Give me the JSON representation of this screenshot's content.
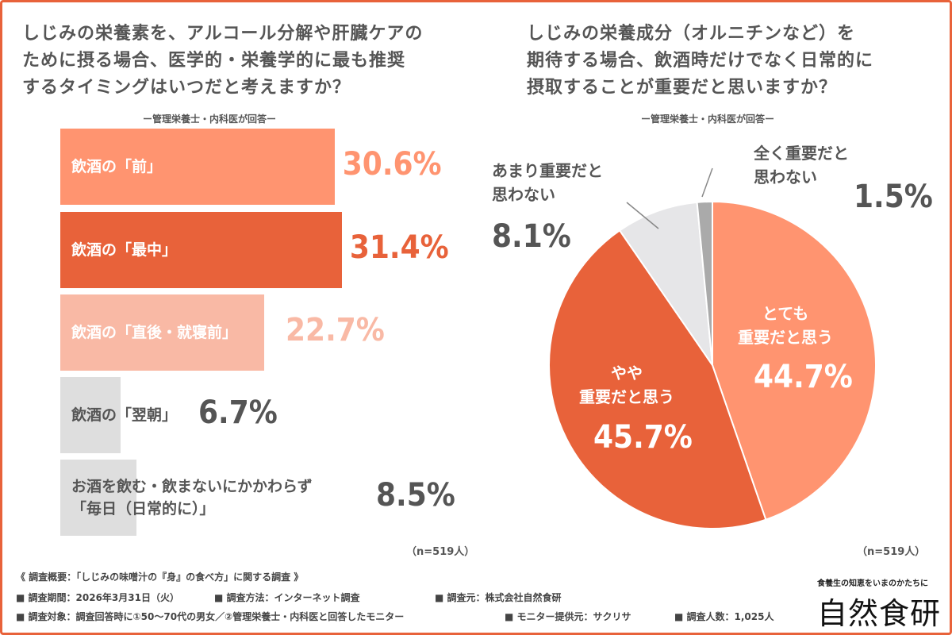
{
  "left": {
    "question": [
      "しじみの栄養素を、アルコール分解や肝臓ケアの",
      "ために摂る場合、医学的・栄養学的に最も推奨",
      "するタイミングはいつだと考えますか？"
    ],
    "subtitle": "ー管理栄養士・内科医が回答ー",
    "n": "（n=519人）"
  },
  "right": {
    "question": [
      "しじみの栄養成分（オルニチンなど）を",
      "期待する場合、飲酒時だけでなく日常的に",
      "摂取することが重要だと思いますか？"
    ],
    "subtitle": "ー管理栄養士・内科医が回答ー",
    "n": "（n=519人）"
  },
  "chart_data": [
    {
      "type": "bar",
      "orientation": "horizontal",
      "categories": [
        "飲酒の「前」",
        "飲酒の「最中」",
        "飲酒の「直後・就寝前」",
        "飲酒の「翌朝」",
        "お酒を飲む・飲まないにかかわらず「毎日（日常的に）」"
      ],
      "category_lines": [
        [
          "飲酒の「前」"
        ],
        [
          "飲酒の「最中」"
        ],
        [
          "飲酒の「直後・就寝前」"
        ],
        [
          "飲酒の「翌朝」"
        ],
        [
          "お酒を飲む・飲まないにかかわらず",
          "「毎日（日常的に）」"
        ]
      ],
      "values": [
        30.6,
        31.4,
        22.7,
        6.7,
        8.5
      ],
      "labels": [
        "30.6%",
        "31.4%",
        "22.7%",
        "6.7%",
        "8.5%"
      ],
      "colors": [
        "#FF9470",
        "#E8623A",
        "#F9B9A5",
        "#DEDEDE",
        "#DEDEDE"
      ]
    },
    {
      "type": "pie",
      "categories": [
        "とても重要だと思う",
        "やや重要だと思う",
        "あまり重要だと思わない",
        "全く重要だと思わない"
      ],
      "category_lines": [
        [
          "とても",
          "重要だと思う"
        ],
        [
          "やや",
          "重要だと思う"
        ],
        [
          "あまり重要だと",
          "思わない"
        ],
        [
          "全く重要だと",
          "思わない"
        ]
      ],
      "values": [
        44.7,
        45.7,
        8.1,
        1.5
      ],
      "labels": [
        "44.7%",
        "45.7%",
        "8.1%",
        "1.5%"
      ],
      "colors": [
        "#FF9470",
        "#E8623A",
        "#E6E6E8",
        "#AAAAAA"
      ]
    }
  ],
  "footer": {
    "title": "《 調査概要：「しじみの味噌汁の『身』の食べ方」に関する調査 》",
    "period": "■ 調査期間：2026年3月31日（火）",
    "method": "■ 調査方法：インターネット調査",
    "source": "■ 調査元：株式会社自然食研",
    "target": "■ 調査対象：調査回答時に①50～70代の男女／②管理栄養士・内科医と回答したモニター",
    "provider": "■ モニター提供元：サクリサ",
    "count": "■ 調査人数：1,025人"
  },
  "logo": {
    "tagline": "食養生の知恵をいまのかたちに",
    "name": "自然食研"
  }
}
